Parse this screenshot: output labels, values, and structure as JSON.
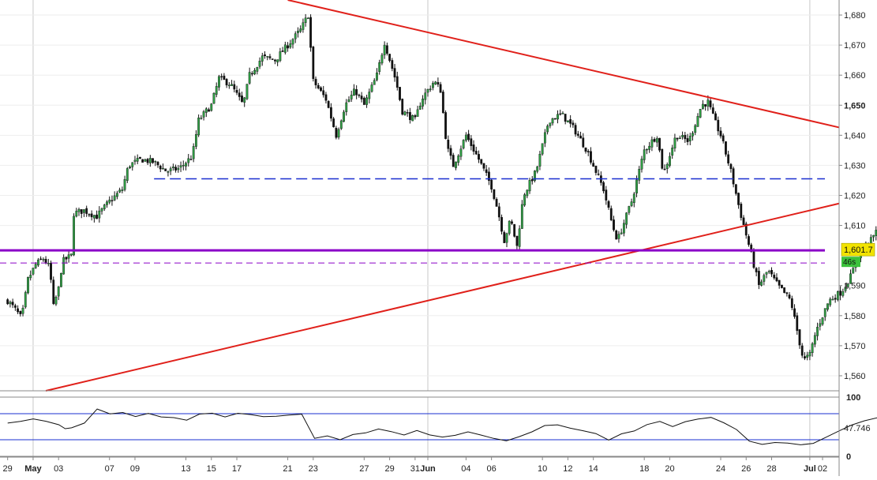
{
  "chart_data": [
    {
      "type": "candlestick",
      "title": "",
      "ylim": [
        1555,
        1685
      ],
      "y_ticks": [
        "1,680",
        "1,670",
        "1,660",
        "1,650",
        "1,640",
        "1,630",
        "1,620",
        "1,610",
        "1,590",
        "1,580",
        "1,570",
        "1,560"
      ],
      "y_tick_values": [
        1680,
        1670,
        1660,
        1650,
        1640,
        1630,
        1620,
        1610,
        1590,
        1580,
        1570,
        1560
      ],
      "y_tick_bold": "1,650",
      "x_ticks": [
        {
          "label": "29",
          "day": 0
        },
        {
          "label": "May",
          "day": 2,
          "bold": true
        },
        {
          "label": "03",
          "day": 4
        },
        {
          "label": "07",
          "day": 8
        },
        {
          "label": "09",
          "day": 10
        },
        {
          "label": "13",
          "day": 14
        },
        {
          "label": "15",
          "day": 16
        },
        {
          "label": "17",
          "day": 18
        },
        {
          "label": "21",
          "day": 22
        },
        {
          "label": "23",
          "day": 24
        },
        {
          "label": "27",
          "day": 28
        },
        {
          "label": "29",
          "day": 30
        },
        {
          "label": "31",
          "day": 32
        },
        {
          "label": "Jun",
          "day": 33,
          "bold": true
        },
        {
          "label": "04",
          "day": 36
        },
        {
          "label": "06",
          "day": 38
        },
        {
          "label": "10",
          "day": 42
        },
        {
          "label": "12",
          "day": 44
        },
        {
          "label": "14",
          "day": 46
        },
        {
          "label": "18",
          "day": 50
        },
        {
          "label": "20",
          "day": 52
        },
        {
          "label": "24",
          "day": 56
        },
        {
          "label": "26",
          "day": 58
        },
        {
          "label": "28",
          "day": 60
        },
        {
          "label": "Jul",
          "day": 63,
          "bold": true
        },
        {
          "label": "02",
          "day": 64
        }
      ],
      "x_range_days": [
        -0.6,
        65.3
      ],
      "last_price": "1,601.7",
      "last_price_value": 1601.7,
      "countdown": "46s",
      "price_path": [
        [
          0,
          1585
        ],
        [
          0.6,
          1582
        ],
        [
          1.1,
          1579
        ],
        [
          1.6,
          1592
        ],
        [
          2.2,
          1597
        ],
        [
          2.8,
          1599
        ],
        [
          3.3,
          1596
        ],
        [
          3.6,
          1583
        ],
        [
          4.0,
          1589
        ],
        [
          4.3,
          1598
        ],
        [
          5.0,
          1600
        ],
        [
          5.2,
          1614
        ],
        [
          6.0,
          1615
        ],
        [
          7.0,
          1613
        ],
        [
          8.0,
          1618
        ],
        [
          9.0,
          1622
        ],
        [
          9.5,
          1630
        ],
        [
          10.5,
          1632
        ],
        [
          11.5,
          1631
        ],
        [
          12.5,
          1628
        ],
        [
          13.5,
          1629
        ],
        [
          14.5,
          1633
        ],
        [
          15.0,
          1645
        ],
        [
          16.0,
          1650
        ],
        [
          16.6,
          1659
        ],
        [
          17.5,
          1657
        ],
        [
          18.5,
          1650
        ],
        [
          19.0,
          1660
        ],
        [
          20.0,
          1666
        ],
        [
          21.0,
          1665
        ],
        [
          22.0,
          1670
        ],
        [
          23.0,
          1675
        ],
        [
          23.6,
          1680
        ],
        [
          24.0,
          1658
        ],
        [
          25.0,
          1652
        ],
        [
          25.8,
          1640
        ],
        [
          26.5,
          1650
        ],
        [
          27.3,
          1655
        ],
        [
          28.0,
          1650
        ],
        [
          29.0,
          1660
        ],
        [
          29.6,
          1671
        ],
        [
          30.5,
          1658
        ],
        [
          31.0,
          1648
        ],
        [
          32.0,
          1645
        ],
        [
          32.5,
          1652
        ],
        [
          33.5,
          1658
        ],
        [
          34.0,
          1655
        ],
        [
          34.5,
          1636
        ],
        [
          35.0,
          1630
        ],
        [
          36.0,
          1640
        ],
        [
          37.0,
          1632
        ],
        [
          38.0,
          1623
        ],
        [
          38.5,
          1615
        ],
        [
          39.0,
          1605
        ],
        [
          39.5,
          1612
        ],
        [
          40.0,
          1603
        ],
        [
          40.5,
          1620
        ],
        [
          41.5,
          1628
        ],
        [
          42.5,
          1645
        ],
        [
          43.5,
          1647
        ],
        [
          44.5,
          1642
        ],
        [
          45.5,
          1635
        ],
        [
          46.0,
          1630
        ],
        [
          46.8,
          1622
        ],
        [
          47.5,
          1610
        ],
        [
          47.9,
          1605
        ],
        [
          48.5,
          1612
        ],
        [
          49.0,
          1618
        ],
        [
          50.0,
          1635
        ],
        [
          51.0,
          1640
        ],
        [
          51.5,
          1627
        ],
        [
          52.5,
          1640
        ],
        [
          53.5,
          1638
        ],
        [
          54.5,
          1650
        ],
        [
          55.0,
          1651
        ],
        [
          55.5,
          1645
        ],
        [
          56.0,
          1640
        ],
        [
          56.8,
          1628
        ],
        [
          57.5,
          1615
        ],
        [
          58.3,
          1602
        ],
        [
          59.0,
          1590
        ],
        [
          59.7,
          1595
        ],
        [
          60.5,
          1590
        ],
        [
          61.5,
          1585
        ],
        [
          62.0,
          1575
        ],
        [
          62.5,
          1565
        ],
        [
          63.0,
          1567
        ],
        [
          63.5,
          1575
        ],
        [
          64.0,
          1580
        ],
        [
          64.5,
          1585
        ],
        [
          65.5,
          1588
        ],
        [
          66.2,
          1593
        ],
        [
          67.0,
          1602
        ],
        [
          67.8,
          1605
        ],
        [
          68.5,
          1610
        ],
        [
          69.0,
          1615
        ],
        [
          69.5,
          1613
        ],
        [
          70.0,
          1617
        ],
        [
          70.3,
          1602
        ]
      ],
      "trendlines": [
        {
          "name": "upper-resistance",
          "color": "#e0201a",
          "points": [
            [
              22.0,
              1685
            ],
            [
              70.0,
              1638
            ]
          ]
        },
        {
          "name": "lower-support",
          "color": "#e0201a",
          "points": [
            [
              3.0,
              1555
            ],
            [
              70.0,
              1622
            ]
          ]
        }
      ],
      "levels": [
        {
          "name": "dashed-resistance",
          "value": 1625.5,
          "color": "#1a2fd0",
          "style": "dashed",
          "from_day": 11.5,
          "to_day": 70.5
        },
        {
          "name": "support-solid",
          "value": 1601.7,
          "color": "#8a00c8",
          "style": "solid",
          "from_day": -0.6,
          "to_day": 70.5
        },
        {
          "name": "support-dashed",
          "value": 1597.5,
          "color": "#8a00c8",
          "style": "dashed",
          "from_day": -0.6,
          "to_day": 70.5
        }
      ]
    },
    {
      "type": "line",
      "name": "oscillator",
      "ylim": [
        0,
        100
      ],
      "y_ticks": [
        "100",
        "0"
      ],
      "y_tick_values": [
        100,
        0
      ],
      "bands": [
        72,
        28
      ],
      "last_value": "47.746",
      "last_value_num": 47.746,
      "values": [
        [
          0,
          55
        ],
        [
          1,
          60
        ],
        [
          2,
          62
        ],
        [
          3,
          58
        ],
        [
          4,
          56
        ],
        [
          4.5,
          45
        ],
        [
          5,
          50
        ],
        [
          6,
          58
        ],
        [
          7,
          78
        ],
        [
          8,
          72
        ],
        [
          9,
          76
        ],
        [
          10,
          70
        ],
        [
          11,
          74
        ],
        [
          12,
          68
        ],
        [
          13,
          66
        ],
        [
          14,
          60
        ],
        [
          15,
          70
        ],
        [
          16,
          72
        ],
        [
          17,
          68
        ],
        [
          18,
          74
        ],
        [
          19,
          72
        ],
        [
          20,
          66
        ],
        [
          21,
          70
        ],
        [
          22,
          72
        ],
        [
          23,
          74
        ],
        [
          24,
          30
        ],
        [
          25,
          34
        ],
        [
          26,
          30
        ],
        [
          27,
          36
        ],
        [
          28,
          40
        ],
        [
          29,
          48
        ],
        [
          30,
          44
        ],
        [
          31,
          38
        ],
        [
          32,
          42
        ],
        [
          33,
          36
        ],
        [
          34,
          30
        ],
        [
          35,
          34
        ],
        [
          36,
          40
        ],
        [
          37,
          38
        ],
        [
          38,
          32
        ],
        [
          39,
          28
        ],
        [
          40,
          35
        ],
        [
          41,
          42
        ],
        [
          42,
          50
        ],
        [
          43,
          55
        ],
        [
          44,
          48
        ],
        [
          45,
          42
        ],
        [
          46,
          38
        ],
        [
          47,
          30
        ],
        [
          48,
          36
        ],
        [
          49,
          44
        ],
        [
          50,
          55
        ],
        [
          51,
          60
        ],
        [
          52,
          52
        ],
        [
          53,
          58
        ],
        [
          54,
          62
        ],
        [
          55,
          64
        ],
        [
          56,
          55
        ],
        [
          57,
          48
        ],
        [
          58,
          28
        ],
        [
          59,
          22
        ],
        [
          60,
          25
        ],
        [
          61,
          20
        ],
        [
          62,
          18
        ],
        [
          63,
          24
        ],
        [
          64,
          30
        ],
        [
          65,
          40
        ],
        [
          66,
          50
        ],
        [
          67,
          58
        ],
        [
          68,
          64
        ],
        [
          69,
          70
        ],
        [
          70,
          48
        ]
      ]
    }
  ]
}
